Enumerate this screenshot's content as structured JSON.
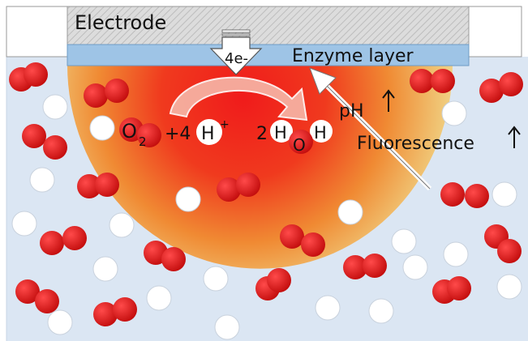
{
  "labels": {
    "electrode": "Electrode",
    "enzyme_layer": "Enzyme layer",
    "electrons": "4e-",
    "ph": "pH",
    "fluorescence": "Fluorescence",
    "o2_label": "O",
    "o2_sub": "2",
    "plus_4": "+4",
    "h_letter": "H",
    "h_plus": "+",
    "two": "2",
    "o_letter": "O"
  },
  "colors": {
    "solution": "#dbe6f3",
    "electrode_gray": "#d6d6d6",
    "enzyme_blue": "#9ec4e6",
    "gradient_center": "#f01b1b",
    "gradient_mid": "#f07a2a",
    "gradient_edge": "#f1e0a0",
    "molecule_red": "#e01919",
    "molecule_white": "#ffffff"
  },
  "icons": [
    "down-arrow-icon",
    "curved-arrow-icon",
    "up-arrow-icon",
    "diagonal-arrow-icon"
  ]
}
